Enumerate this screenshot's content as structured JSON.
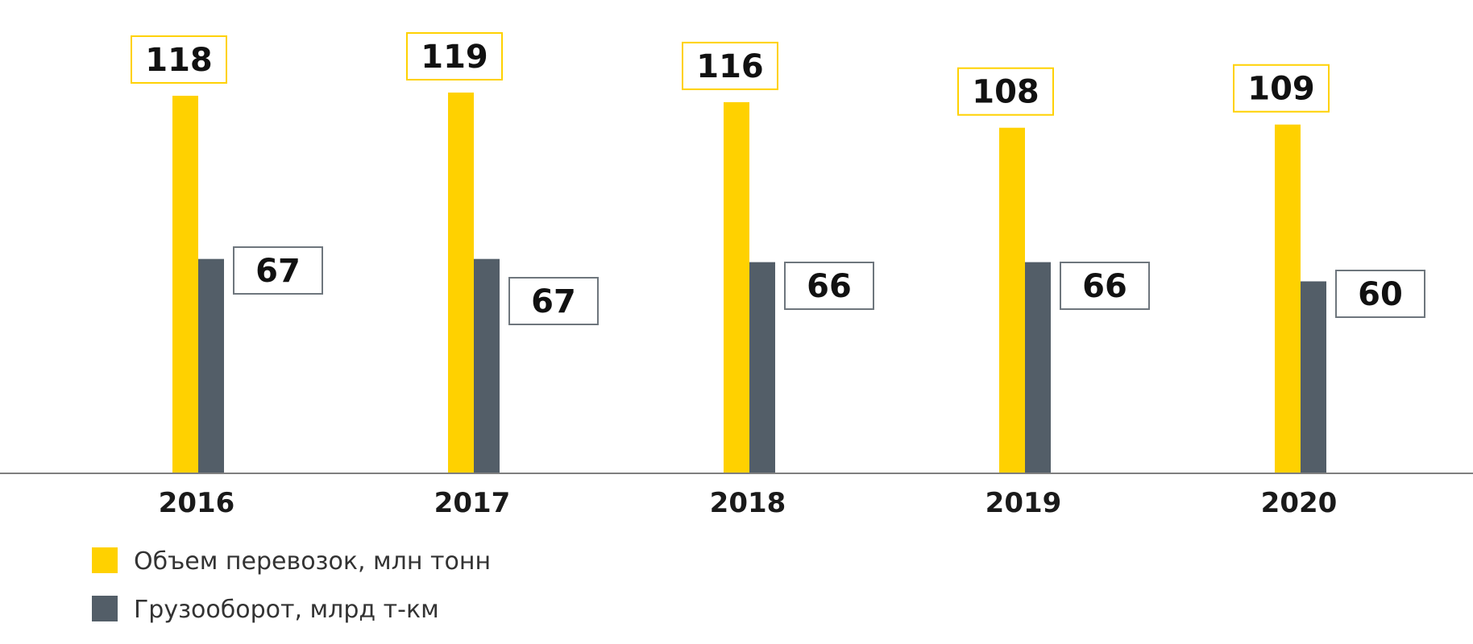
{
  "chart_data": {
    "type": "bar",
    "title": "",
    "xlabel": "",
    "ylabel": "",
    "categories": [
      "2016",
      "2017",
      "2018",
      "2019",
      "2020"
    ],
    "series": [
      {
        "name": "Объем перевозок, млн тонн",
        "values": [
          118,
          119,
          116,
          108,
          109
        ],
        "color": "#FFD100"
      },
      {
        "name": "Грузооборот, млрд т-км",
        "values": [
          67,
          67,
          66,
          66,
          60
        ],
        "color": "#535E68"
      }
    ],
    "label_box_colors": [
      "#FFD100",
      "#6E767D"
    ],
    "axis_color": "#7F7F7F",
    "grid": false,
    "legend_position": "bottom-left"
  }
}
